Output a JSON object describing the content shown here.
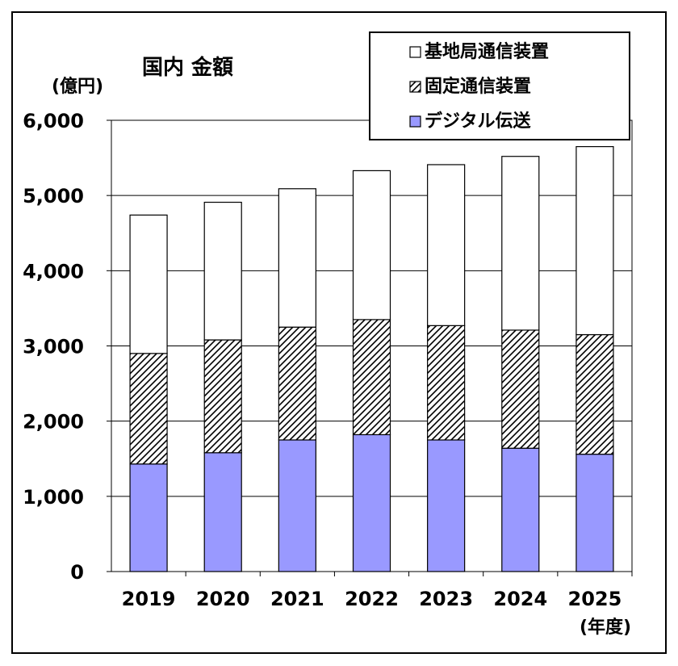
{
  "chart_data": {
    "type": "bar",
    "stacked": true,
    "title": "国内 金額",
    "ylabel": "(億円)",
    "xlabel": "(年度)",
    "categories": [
      "2019",
      "2020",
      "2021",
      "2022",
      "2023",
      "2024",
      "2025"
    ],
    "series": [
      {
        "name": "デジタル伝送",
        "values": [
          1430,
          1580,
          1750,
          1820,
          1750,
          1640,
          1560
        ],
        "color": "#9999ff",
        "pattern": "solid"
      },
      {
        "name": "固定通信装置",
        "values": [
          1470,
          1500,
          1500,
          1530,
          1520,
          1570,
          1590
        ],
        "color": "#ffffff",
        "pattern": "hatch"
      },
      {
        "name": "基地局通信装置",
        "values": [
          1840,
          1830,
          1840,
          1980,
          2140,
          2310,
          2500
        ],
        "color": "#ffffff",
        "pattern": "none"
      }
    ],
    "ylim": [
      0,
      6000
    ],
    "yticks": [
      "0",
      "1,000",
      "2,000",
      "3,000",
      "4,000",
      "5,000",
      "6,000"
    ],
    "grid": true,
    "legend_position": "top-right"
  }
}
